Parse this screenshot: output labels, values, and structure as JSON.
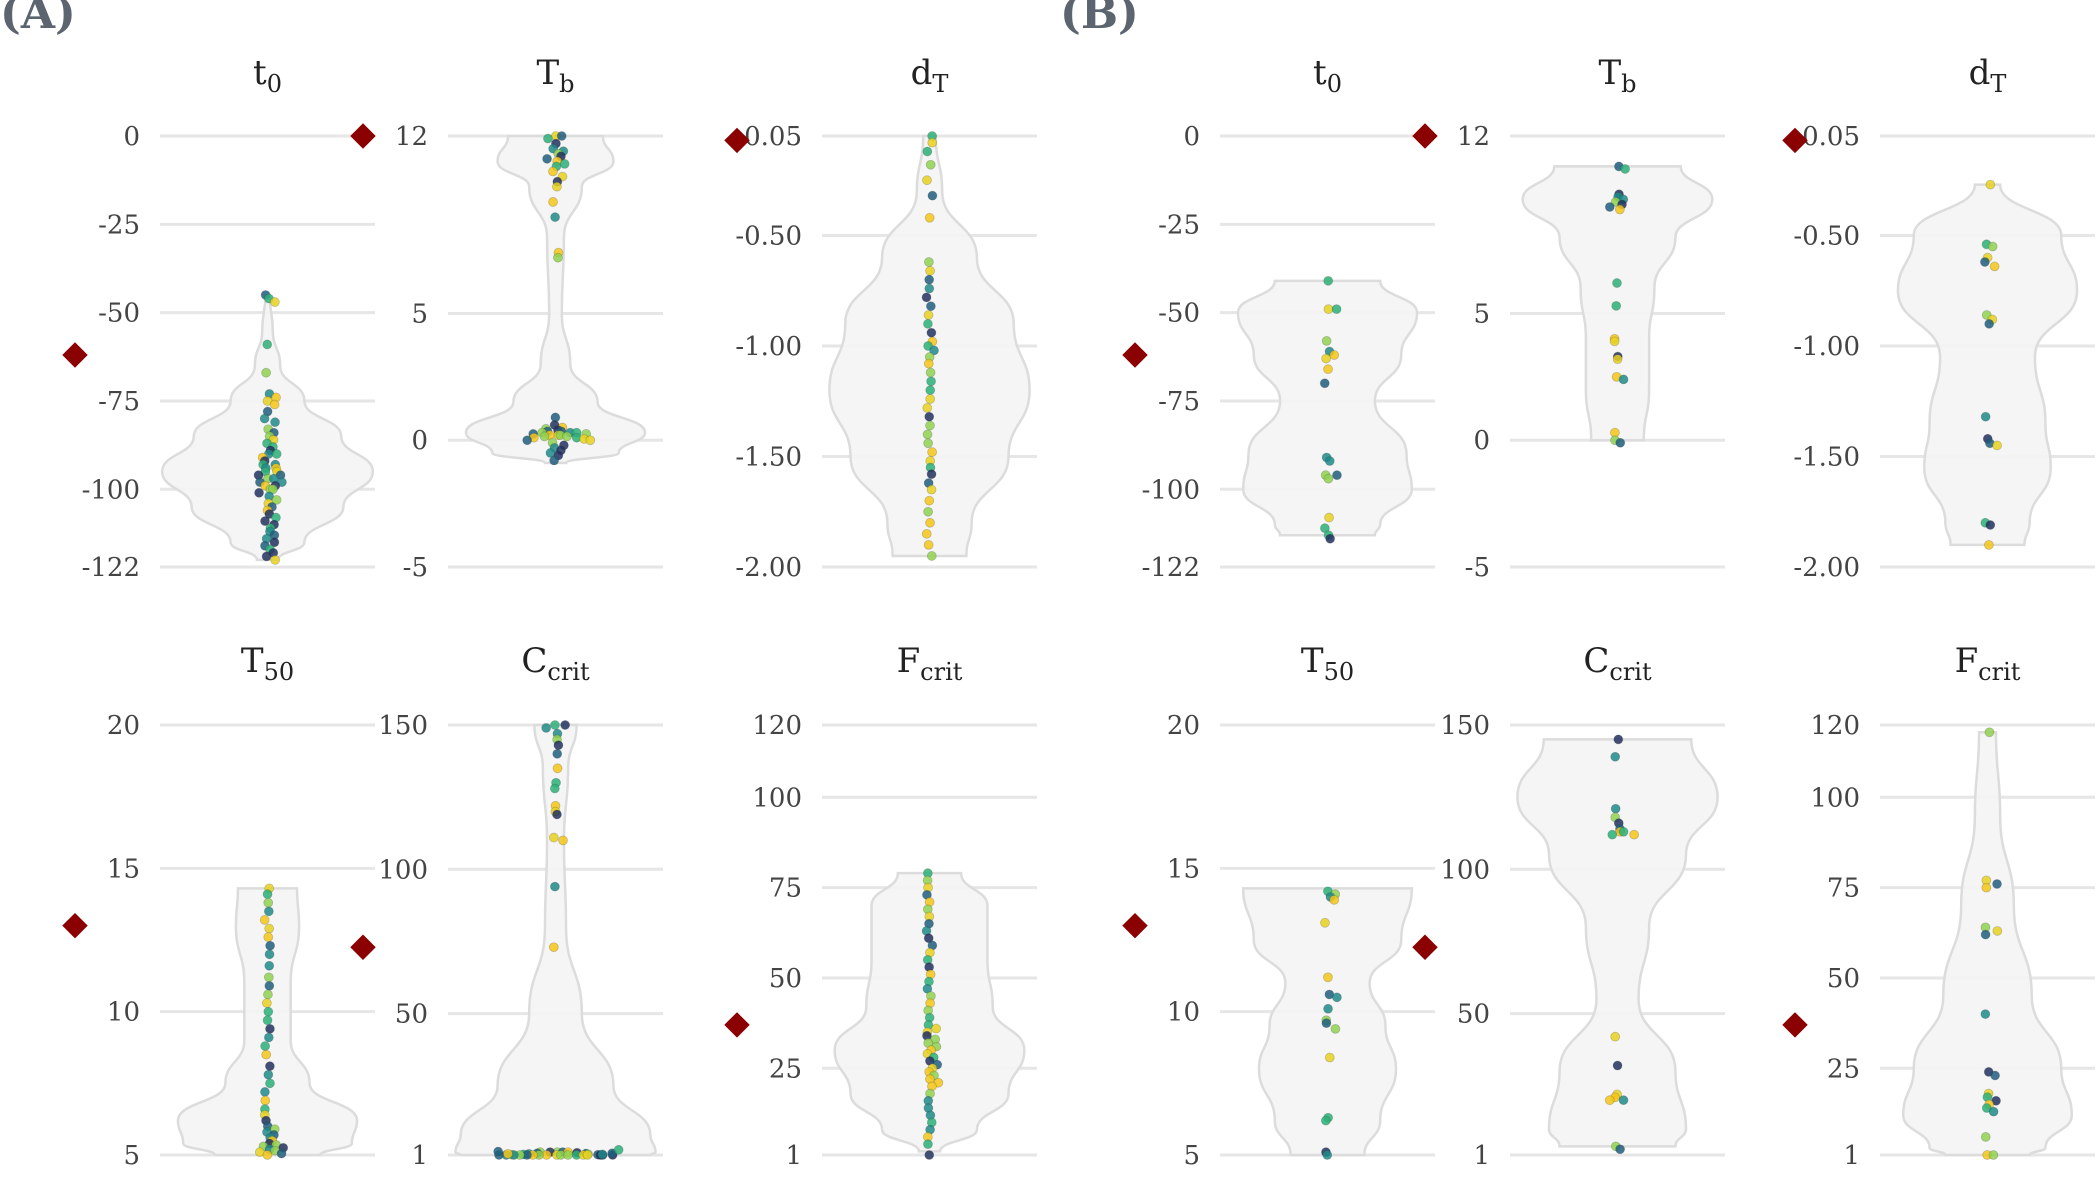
{
  "panels": [
    {
      "label": "(A)"
    },
    {
      "label": "(B)"
    }
  ],
  "colors": {
    "violin_fill": "#f4f4f4",
    "violin_stroke": "#dcdcdc",
    "grid": "#e6e6e6",
    "reference_marker": "#8b0000",
    "point_palette": [
      "#21305e",
      "#1f5e7e",
      "#1f8a8a",
      "#2ab078",
      "#8fd14f",
      "#e8d11f",
      "#f5c518"
    ]
  },
  "chart_data": [
    {
      "panel": "A",
      "type": "scatter",
      "title": "t",
      "title_sub": "0",
      "yticks": [
        0,
        -25,
        -50,
        -75,
        -100,
        -122
      ],
      "ylim": [
        -122,
        0
      ],
      "reference": -62,
      "violin": [
        [
          -45,
          0.02
        ],
        [
          -55,
          0.05
        ],
        [
          -65,
          0.12
        ],
        [
          -75,
          0.35
        ],
        [
          -85,
          0.7
        ],
        [
          -95,
          1
        ],
        [
          -105,
          0.72
        ],
        [
          -115,
          0.35
        ],
        [
          -120,
          0.1
        ]
      ],
      "points": [
        -45,
        -46,
        -47,
        -59,
        -67,
        -73,
        -74,
        -75,
        -76,
        -78,
        -80,
        -81,
        -83,
        -84,
        -85,
        -86,
        -87,
        -88,
        -89,
        -90,
        -90,
        -91,
        -92,
        -93,
        -93,
        -94,
        -94,
        -95,
        -95,
        -96,
        -96,
        -97,
        -97,
        -98,
        -98,
        -99,
        -99,
        -100,
        -100,
        -101,
        -102,
        -103,
        -104,
        -105,
        -106,
        -107,
        -108,
        -109,
        -110,
        -111,
        -112,
        -113,
        -114,
        -115,
        -116,
        -117,
        -118,
        -119,
        -120
      ]
    },
    {
      "panel": "A",
      "type": "scatter",
      "title": "T",
      "title_sub": "b",
      "yticks": [
        12,
        5,
        0,
        -5
      ],
      "ylim": [
        -5,
        12
      ],
      "reference": 12,
      "violin": [
        [
          12,
          0.45
        ],
        [
          11,
          0.55
        ],
        [
          10,
          0.25
        ],
        [
          8,
          0.08
        ],
        [
          5,
          0.06
        ],
        [
          3,
          0.14
        ],
        [
          1.5,
          0.4
        ],
        [
          0.3,
          0.85
        ],
        [
          -0.5,
          0.6
        ],
        [
          -0.9,
          0.1
        ]
      ],
      "points": [
        12,
        12,
        11.9,
        11.7,
        11.5,
        11.4,
        11.3,
        11.2,
        11.1,
        11,
        10.9,
        10.8,
        10.6,
        10.4,
        10.2,
        10,
        9.4,
        8.8,
        7.4,
        7.2,
        0.9,
        0.6,
        0.5,
        0.45,
        0.4,
        0.35,
        0.35,
        0.3,
        0.3,
        0.3,
        0.25,
        0.25,
        0.2,
        0.2,
        0.2,
        0.15,
        0.15,
        0.1,
        0.1,
        0.05,
        0,
        0,
        -0.1,
        -0.2,
        -0.3,
        -0.4,
        -0.5,
        -0.6,
        -0.8
      ]
    },
    {
      "panel": "A",
      "type": "scatter",
      "title": "d",
      "title_sub": "T",
      "yticks": [
        -0.05,
        -0.5,
        -1,
        -1.5,
        -2
      ],
      "yticklabels": [
        "-0.05",
        "-0.50",
        "-1.00",
        "-1.50",
        "-2.00"
      ],
      "ylim": [
        -2,
        -0.05
      ],
      "reference": -0.07,
      "violin": [
        [
          -0.05,
          0.06
        ],
        [
          -0.3,
          0.12
        ],
        [
          -0.6,
          0.45
        ],
        [
          -0.9,
          0.8
        ],
        [
          -1.2,
          0.95
        ],
        [
          -1.5,
          0.75
        ],
        [
          -1.8,
          0.4
        ],
        [
          -1.95,
          0.35
        ]
      ],
      "points": [
        -0.05,
        -0.08,
        -0.12,
        -0.18,
        -0.25,
        -0.32,
        -0.42,
        -0.62,
        -0.66,
        -0.7,
        -0.74,
        -0.78,
        -0.82,
        -0.86,
        -0.9,
        -0.94,
        -0.98,
        -1,
        -1.02,
        -1.05,
        -1.08,
        -1.12,
        -1.16,
        -1.2,
        -1.24,
        -1.28,
        -1.32,
        -1.36,
        -1.4,
        -1.44,
        -1.48,
        -1.52,
        -1.55,
        -1.58,
        -1.62,
        -1.65,
        -1.7,
        -1.75,
        -1.8,
        -1.85,
        -1.9,
        -1.95
      ]
    },
    {
      "panel": "B",
      "type": "scatter",
      "title": "t",
      "title_sub": "0",
      "yticks": [
        0,
        -25,
        -50,
        -75,
        -100,
        -122
      ],
      "ylim": [
        -122,
        0
      ],
      "reference": -62,
      "violin": [
        [
          -41,
          0.5
        ],
        [
          -50,
          0.85
        ],
        [
          -62,
          0.7
        ],
        [
          -75,
          0.45
        ],
        [
          -90,
          0.75
        ],
        [
          -100,
          0.8
        ],
        [
          -110,
          0.5
        ],
        [
          -113,
          0.45
        ]
      ],
      "points": [
        -41,
        -49,
        -49,
        -58,
        -61,
        -62,
        -63,
        -66,
        -70,
        -91,
        -92,
        -96,
        -96,
        -97,
        -108,
        -111,
        -113,
        -114
      ]
    },
    {
      "panel": "B",
      "type": "scatter",
      "title": "T",
      "title_sub": "b",
      "yticks": [
        12,
        5,
        0,
        -5
      ],
      "ylim": [
        -5,
        12
      ],
      "reference": 12,
      "violin": [
        [
          10.8,
          0.6
        ],
        [
          9.5,
          0.9
        ],
        [
          8,
          0.55
        ],
        [
          6,
          0.35
        ],
        [
          4,
          0.3
        ],
        [
          2,
          0.3
        ],
        [
          0,
          0.25
        ]
      ],
      "points": [
        10.8,
        10.7,
        9.7,
        9.6,
        9.5,
        9.4,
        9.3,
        9.2,
        9.1,
        6.2,
        5.3,
        4,
        3.9,
        3.3,
        3.2,
        2.5,
        2.4,
        0.3,
        0,
        -0.1
      ]
    },
    {
      "panel": "B",
      "type": "scatter",
      "title": "d",
      "title_sub": "T",
      "yticks": [
        -0.05,
        -0.5,
        -1,
        -1.5,
        -2
      ],
      "yticklabels": [
        "-0.05",
        "-0.50",
        "-1.00",
        "-1.50",
        "-2.00"
      ],
      "ylim": [
        -2,
        -0.05
      ],
      "reference": -0.07,
      "violin": [
        [
          -0.27,
          0.12
        ],
        [
          -0.5,
          0.7
        ],
        [
          -0.75,
          0.85
        ],
        [
          -1.05,
          0.45
        ],
        [
          -1.35,
          0.55
        ],
        [
          -1.55,
          0.6
        ],
        [
          -1.8,
          0.4
        ],
        [
          -1.9,
          0.35
        ]
      ],
      "points": [
        -0.27,
        -0.54,
        -0.55,
        -0.6,
        -0.62,
        -0.64,
        -0.86,
        -0.88,
        -0.9,
        -1.32,
        -1.42,
        -1.44,
        -1.45,
        -1.8,
        -1.81,
        -1.9
      ]
    },
    {
      "panel": "A",
      "type": "scatter",
      "title": "T",
      "title_sub": "50",
      "yticks": [
        20,
        15,
        10,
        5
      ],
      "ylim": [
        5,
        20
      ],
      "reference": 13,
      "violin": [
        [
          14.3,
          0.28
        ],
        [
          13,
          0.3
        ],
        [
          11,
          0.22
        ],
        [
          9,
          0.22
        ],
        [
          7.5,
          0.4
        ],
        [
          6.2,
          0.85
        ],
        [
          5.4,
          0.8
        ],
        [
          5,
          0.5
        ]
      ],
      "points": [
        14.3,
        14.1,
        13.8,
        13.5,
        13.2,
        12.9,
        12.6,
        12.3,
        12,
        11.6,
        11.2,
        10.9,
        10.6,
        10.3,
        10,
        9.7,
        9.4,
        9.1,
        8.8,
        8.5,
        8.1,
        7.8,
        7.5,
        7.2,
        6.9,
        6.6,
        6.4,
        6.2,
        6,
        5.9,
        5.8,
        5.7,
        5.6,
        5.5,
        5.4,
        5.35,
        5.3,
        5.25,
        5.2,
        5.15,
        5.1,
        5.05,
        5
      ]
    },
    {
      "panel": "A",
      "type": "scatter",
      "title": "C",
      "title_sub": "crit",
      "yticks": [
        150,
        100,
        50,
        1
      ],
      "ylim": [
        1,
        150
      ],
      "reference": 73,
      "violin": [
        [
          150,
          0.2
        ],
        [
          135,
          0.12
        ],
        [
          110,
          0.08
        ],
        [
          80,
          0.1
        ],
        [
          50,
          0.25
        ],
        [
          25,
          0.55
        ],
        [
          8,
          0.9
        ],
        [
          2,
          0.95
        ],
        [
          1,
          0.9
        ]
      ],
      "points": [
        150,
        150,
        149,
        147,
        145,
        143,
        140,
        135,
        130,
        128,
        122,
        120,
        119,
        111,
        110,
        94,
        73,
        2,
        2,
        2,
        2,
        2,
        1.8,
        1.6,
        1.5,
        1.4,
        1.3,
        1.2,
        1.1,
        1.1,
        1,
        1,
        1,
        1,
        1,
        1,
        1,
        1,
        1,
        1,
        1,
        1,
        1,
        1,
        1,
        1,
        1,
        1.2,
        1.4,
        1.6,
        2.2,
        2.8
      ]
    },
    {
      "panel": "A",
      "type": "scatter",
      "title": "F",
      "title_sub": "crit",
      "yticks": [
        120,
        100,
        75,
        50,
        25,
        1
      ],
      "ylim": [
        1,
        120
      ],
      "reference": 37,
      "violin": [
        [
          79,
          0.3
        ],
        [
          70,
          0.55
        ],
        [
          55,
          0.55
        ],
        [
          42,
          0.6
        ],
        [
          30,
          0.9
        ],
        [
          18,
          0.75
        ],
        [
          8,
          0.45
        ],
        [
          2,
          0.1
        ]
      ],
      "points": [
        79,
        77,
        75,
        73,
        71,
        69,
        67,
        65,
        63,
        61,
        59,
        57,
        55,
        53,
        51,
        49,
        47,
        45,
        43,
        41,
        39,
        37,
        36,
        35,
        34,
        33,
        32,
        31,
        30,
        29,
        28,
        27,
        26,
        25,
        24,
        23,
        22,
        21,
        20,
        18,
        16,
        14,
        12,
        10,
        8,
        6,
        4,
        1
      ]
    },
    {
      "panel": "B",
      "type": "scatter",
      "title": "T",
      "title_sub": "50",
      "yticks": [
        20,
        15,
        10,
        5
      ],
      "ylim": [
        5,
        20
      ],
      "reference": 13,
      "violin": [
        [
          14.3,
          0.8
        ],
        [
          12.5,
          0.7
        ],
        [
          11,
          0.4
        ],
        [
          9.5,
          0.55
        ],
        [
          8,
          0.65
        ],
        [
          6.2,
          0.5
        ],
        [
          5,
          0.35
        ]
      ],
      "points": [
        14.2,
        14.1,
        14,
        13.9,
        13.1,
        11.2,
        10.6,
        10.5,
        10.1,
        9.7,
        9.6,
        9.4,
        8.4,
        6.3,
        6.2,
        5.1,
        5
      ]
    },
    {
      "panel": "B",
      "type": "scatter",
      "title": "C",
      "title_sub": "crit",
      "yticks": [
        150,
        100,
        50,
        1
      ],
      "ylim": [
        1,
        150
      ],
      "reference": 73,
      "violin": [
        [
          145,
          0.7
        ],
        [
          125,
          0.95
        ],
        [
          105,
          0.65
        ],
        [
          80,
          0.3
        ],
        [
          55,
          0.2
        ],
        [
          30,
          0.55
        ],
        [
          10,
          0.65
        ],
        [
          4,
          0.55
        ]
      ],
      "points": [
        145,
        139,
        121,
        118,
        116,
        114,
        113,
        113,
        112,
        112,
        42,
        32,
        22,
        21,
        20,
        20,
        4,
        3
      ]
    },
    {
      "panel": "B",
      "type": "scatter",
      "title": "F",
      "title_sub": "crit",
      "yticks": [
        120,
        100,
        75,
        50,
        25,
        1
      ],
      "ylim": [
        1,
        120
      ],
      "reference": 37,
      "violin": [
        [
          118,
          0.08
        ],
        [
          95,
          0.12
        ],
        [
          70,
          0.25
        ],
        [
          45,
          0.42
        ],
        [
          25,
          0.7
        ],
        [
          12,
          0.8
        ],
        [
          3,
          0.55
        ],
        [
          1,
          0.4
        ]
      ],
      "points": [
        118,
        77,
        76,
        75,
        64,
        63,
        62,
        40,
        24,
        23,
        18,
        17,
        16,
        15,
        14,
        13,
        6,
        1,
        1
      ]
    }
  ]
}
